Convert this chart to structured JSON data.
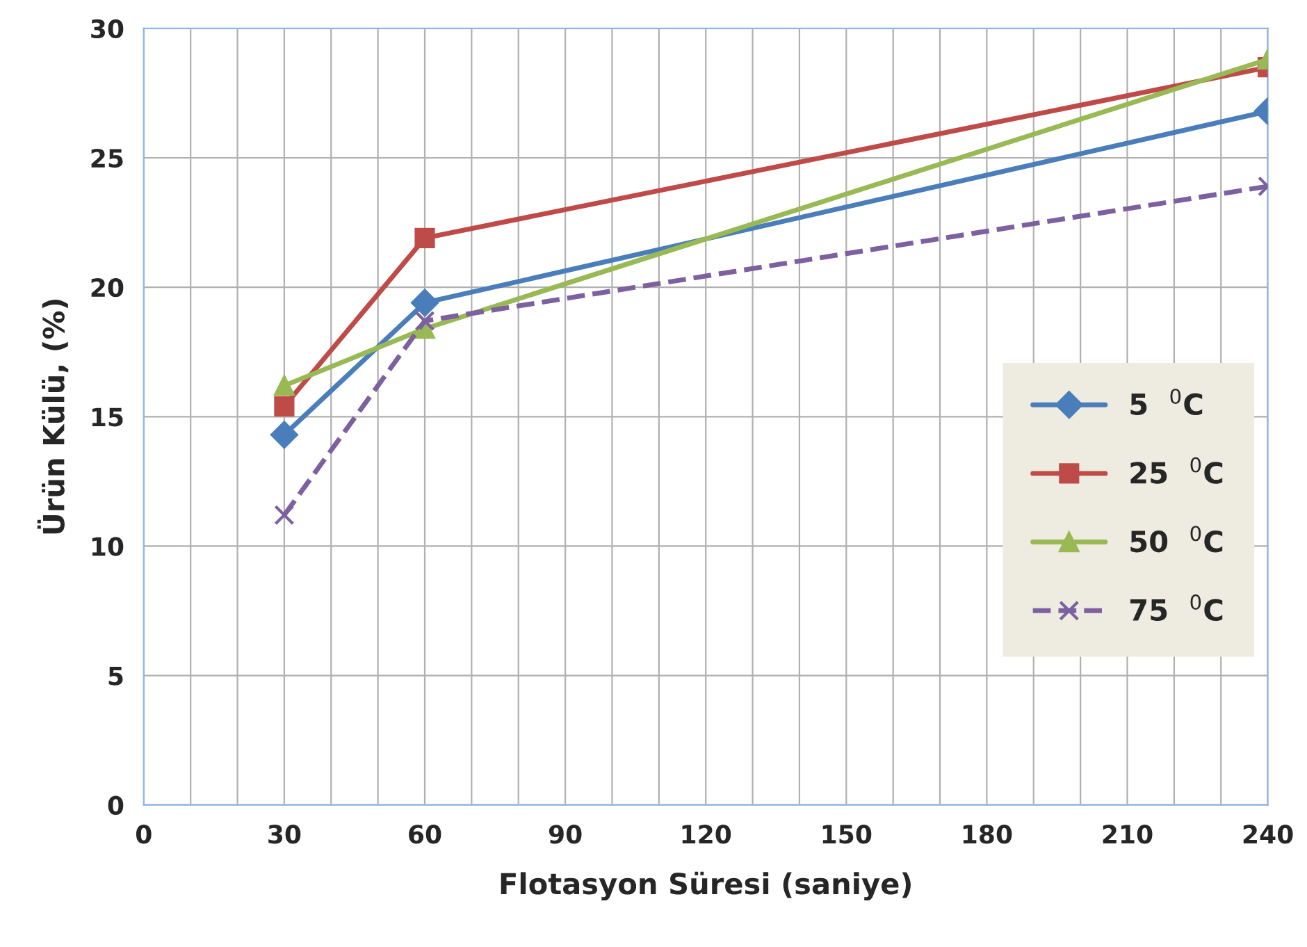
{
  "chart_data": {
    "type": "line",
    "xlabel": "Flotasyon Süresi (saniye)",
    "ylabel": "Ürün Külü, (%)",
    "x": [
      30,
      60,
      240
    ],
    "series": [
      {
        "name": "5  $^{0}$C",
        "color": "#4a7ebb",
        "marker": "diamond",
        "line_style": "solid",
        "values": [
          14.3,
          19.4,
          26.8
        ]
      },
      {
        "name": "25  $^{0}$C",
        "color": "#be4b48",
        "marker": "square",
        "line_style": "solid",
        "values": [
          15.4,
          21.9,
          28.5
        ]
      },
      {
        "name": "50  $^{0}$C",
        "color": "#98b954",
        "marker": "triangle",
        "line_style": "solid",
        "values": [
          16.2,
          18.4,
          28.8
        ]
      },
      {
        "name": "75  $^{0}$C",
        "color": "#7d60a0",
        "marker": "cross",
        "line_style": "dashed",
        "values": [
          11.2,
          18.7,
          23.9
        ]
      }
    ],
    "xlim": [
      0,
      240
    ],
    "xticks": [
      0,
      {
        "value": 10,
        "label": null
      },
      {
        "value": 20,
        "label": null
      },
      30,
      {
        "value": 40,
        "label": null
      },
      {
        "value": 50,
        "label": null
      },
      60,
      {
        "value": 70,
        "label": null
      },
      {
        "value": 80,
        "label": null
      },
      90,
      {
        "value": 100,
        "label": null
      },
      {
        "value": 110,
        "label": null
      },
      120,
      {
        "value": 130,
        "label": null
      },
      {
        "value": 140,
        "label": null
      },
      150,
      {
        "value": 160,
        "label": null
      },
      {
        "value": 170,
        "label": null
      },
      180,
      {
        "value": 190,
        "label": null
      },
      {
        "value": 200,
        "label": null
      },
      210,
      {
        "value": 220,
        "label": null
      },
      {
        "value": 230,
        "label": null
      },
      240
    ],
    "ylim": [
      0,
      30
    ],
    "yticks": [
      0,
      5,
      10,
      15,
      20,
      25,
      30
    ],
    "grid": true,
    "legend": "right"
  }
}
